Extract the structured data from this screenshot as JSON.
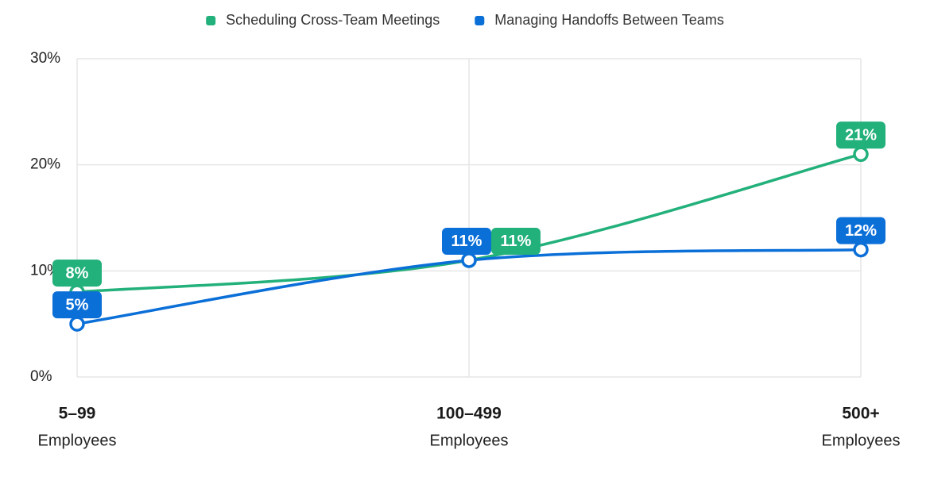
{
  "chart_data": {
    "type": "line",
    "categories": [
      [
        "5–99",
        "Employees"
      ],
      [
        "100–499",
        "Employees"
      ],
      [
        "500+",
        "Employees"
      ]
    ],
    "series": [
      {
        "name": "Scheduling Cross-Team Meetings",
        "color": "#22b07b",
        "values": [
          8,
          11,
          21
        ],
        "value_labels": [
          "8%",
          "11%",
          "21%"
        ]
      },
      {
        "name": "Managing Handoffs Between Teams",
        "color": "#0b6fd8",
        "values": [
          5,
          11,
          12
        ],
        "value_labels": [
          "5%",
          "11%",
          "12%"
        ]
      }
    ],
    "ylim": [
      0,
      30
    ],
    "yticks": [
      {
        "value": 0,
        "label": "0%"
      },
      {
        "value": 10,
        "label": "10%"
      },
      {
        "value": 20,
        "label": "20%"
      },
      {
        "value": 30,
        "label": "30%"
      }
    ],
    "grid": true,
    "legend": "top"
  }
}
